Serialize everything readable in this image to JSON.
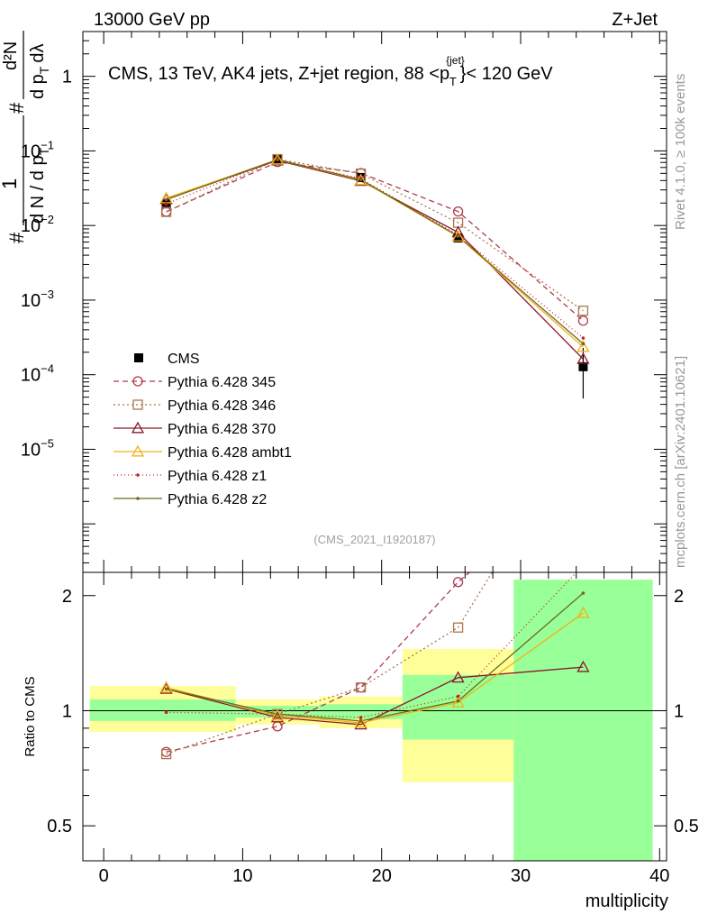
{
  "header": {
    "energy_label": "13000 GeV pp",
    "process_label": "Z+Jet"
  },
  "side_labels": {
    "rivet": "Rivet 4.1.0, ≥ 100k events",
    "mcplots": "mcplots.cern.ch [arXiv:2401.10621]"
  },
  "chart_data": {
    "type": "line",
    "title_pre": "CMS, 13 TeV, AK4 jets, Z+jet region, 88 <p",
    "title_sup": "{jet}",
    "title_sub": "T",
    "title_post": "}< 120 GeV",
    "analysis_id": "(CMS_2021_I1920187)",
    "xlabel": "multiplicity",
    "xlim": [
      -1.5,
      40.5
    ],
    "xticks": [
      "0",
      "10",
      "20",
      "30",
      "40"
    ],
    "ylabel_top": {
      "num1": "#",
      "frac1": "1",
      "den1": "d N / d p",
      "den1_sub": "T",
      "num2": "#",
      "frac2": "d²N",
      "den2": "d p",
      "den2_sub": "T",
      "den2_end": "dλ"
    },
    "ylim_top_log10": [
      -6.65,
      0.6
    ],
    "yticks_top": [
      {
        "v": 1,
        "base": "1",
        "exp": ""
      },
      {
        "v": 0.1,
        "base": "10",
        "exp": "−1"
      },
      {
        "v": 0.01,
        "base": "10",
        "exp": "−2"
      },
      {
        "v": 0.001,
        "base": "10",
        "exp": "−3"
      },
      {
        "v": 0.0001,
        "base": "10",
        "exp": "−4"
      },
      {
        "v": 1e-05,
        "base": "10",
        "exp": "−5"
      }
    ],
    "ylabel_ratio": "Ratio to CMS",
    "ylim_ratio": [
      0.405,
      2.3
    ],
    "yticks_ratio": [
      "0.5",
      "1",
      "2"
    ],
    "bins": [
      {
        "lo": -1,
        "hi": 9.5,
        "x": 4.5
      },
      {
        "lo": 9.5,
        "hi": 15.5,
        "x": 12.5
      },
      {
        "lo": 15.5,
        "hi": 21.5,
        "x": 18.5
      },
      {
        "lo": 21.5,
        "hi": 29.5,
        "x": 25.5
      },
      {
        "lo": 29.5,
        "hi": 39.5,
        "x": 34.5
      }
    ],
    "cms": {
      "name": "CMS",
      "values": [
        0.0195,
        0.078,
        0.044,
        0.0068,
        0.000128
      ],
      "err_lo": [
        0.0002,
        0.0008,
        0.0005,
        0.0003,
        8e-05
      ],
      "err_hi": [
        0.0002,
        0.0008,
        0.0005,
        0.0003,
        0.0001
      ],
      "band_green": [
        [
          0.94,
          1.07
        ],
        [
          0.96,
          1.03
        ],
        [
          0.95,
          1.04
        ],
        [
          0.84,
          1.24
        ],
        [
          0.35,
          2.2
        ]
      ],
      "band_yellow": [
        [
          0.88,
          1.16
        ],
        [
          0.92,
          1.07
        ],
        [
          0.9,
          1.09
        ],
        [
          0.65,
          1.45
        ],
        [
          0.35,
          2.2
        ]
      ]
    },
    "series": [
      {
        "name": "Pythia 6.428 345",
        "color": "#b03a4e",
        "dash": "6,4",
        "marker": "circle",
        "values": [
          0.0153,
          0.071,
          0.0505,
          0.0154,
          0.00053
        ],
        "ratio": [
          0.78,
          0.91,
          1.15,
          2.17,
          4.1
        ]
      },
      {
        "name": "Pythia 6.428 346",
        "color": "#a8774c",
        "dash": "2,3",
        "marker": "square",
        "values": [
          0.0152,
          0.0775,
          0.0495,
          0.0109,
          0.00072
        ],
        "ratio": [
          0.77,
          0.98,
          1.15,
          1.65,
          5.6
        ]
      },
      {
        "name": "Pythia 6.428 370",
        "color": "#8b1a2b",
        "dash": "",
        "marker": "triangle",
        "values": [
          0.0225,
          0.0745,
          0.0395,
          0.0081,
          0.000162
        ],
        "ratio": [
          1.14,
          0.96,
          0.92,
          1.22,
          1.3
        ]
      },
      {
        "name": "Pythia 6.428 ambt1",
        "color": "#f0b21a",
        "dash": "",
        "marker": "triangle",
        "values": [
          0.0232,
          0.0762,
          0.0405,
          0.0071,
          0.000235
        ],
        "ratio": [
          1.15,
          0.97,
          0.93,
          1.05,
          1.8
        ]
      },
      {
        "name": "Pythia 6.428 z1",
        "color": "#cc2222",
        "dash": "1,3",
        "marker": "dot",
        "values": [
          0.0195,
          0.0765,
          0.0425,
          0.0075,
          0.00031
        ],
        "ratio": [
          0.99,
          0.98,
          0.96,
          1.09,
          2.4
        ]
      },
      {
        "name": "Pythia 6.428 z2",
        "color": "#6e6a1a",
        "dash": "",
        "marker": "dot",
        "values": [
          0.0222,
          0.0762,
          0.0412,
          0.0072,
          0.00026
        ],
        "ratio": [
          1.14,
          0.98,
          0.94,
          1.06,
          2.03
        ]
      }
    ]
  }
}
